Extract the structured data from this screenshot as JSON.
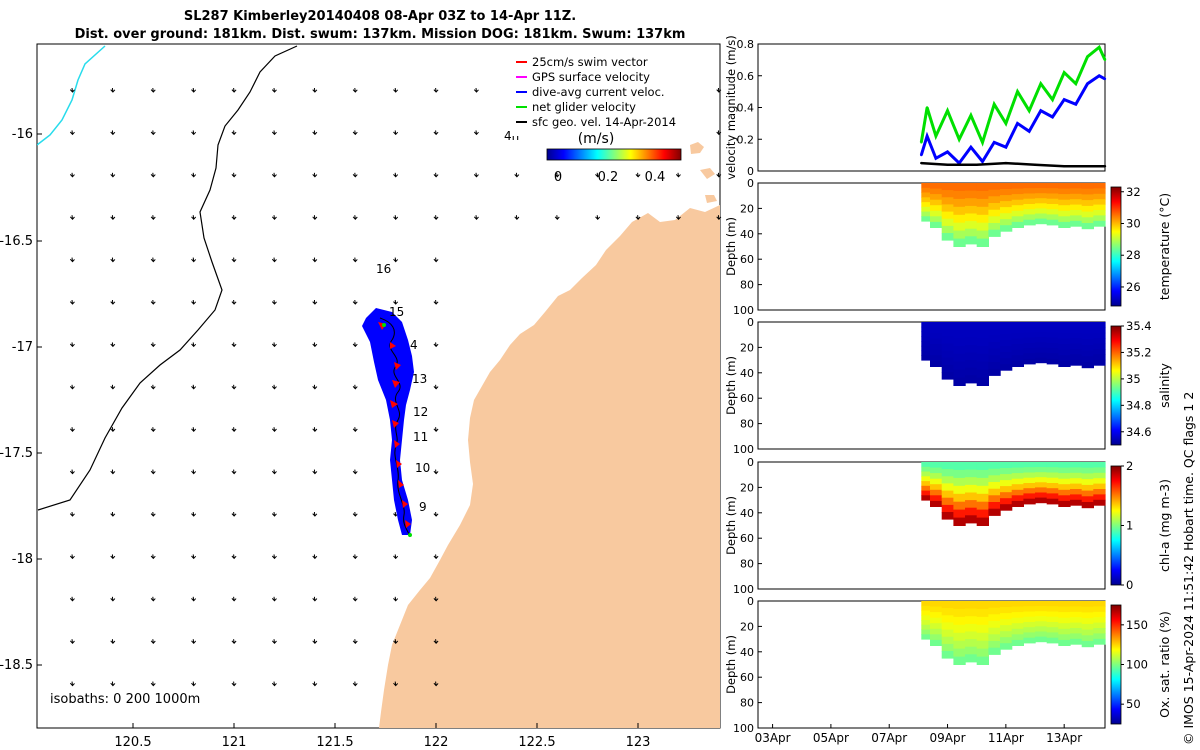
{
  "header": {
    "title_line1": "SL287 Kimberley20140408 08-Apr 03Z to 14-Apr 11Z.",
    "title_line2": "Dist. over ground: 181km. Dist. swum: 137km. Mission DOG: 181km. Swum: 137km"
  },
  "footer_note": "© IMOS 15-Apr-2024 11:51:42 Hobart time. QC flags 1  2",
  "colors": {
    "land": "#f8c99f",
    "track": "#0000ff",
    "swim": "#ff0000",
    "net": "#00e000",
    "geo": "#000000",
    "isobath": "#000000",
    "shallow_isobath": "#28dcec"
  },
  "map": {
    "legend": [
      {
        "label": "25cm/s swim vector",
        "color": "#ff0000"
      },
      {
        "label": "GPS surface velocity",
        "color": "#ff00ff"
      },
      {
        "label": "dive-avg current veloc.",
        "color": "#0000ff"
      },
      {
        "label": "net glider velocity",
        "color": "#00e000"
      },
      {
        "label": "sfc geo. vel. 14-Apr-2014",
        "color": "#000000"
      }
    ],
    "colorbar_label": "(m/s)",
    "colorbar_ticks": [
      "0",
      "0.2",
      "0.4"
    ],
    "isobath_text": "isobaths: 0   200  1000m",
    "x_ticks": [
      "120.5",
      "121",
      "121.5",
      "122",
      "122.5",
      "123"
    ],
    "y_ticks": [
      "-16",
      "-16.5",
      "-17",
      "-17.5",
      "-18",
      "-18.5"
    ],
    "day_labels": [
      "16",
      "15",
      "4",
      "13",
      "12",
      "11",
      "10",
      "9"
    ],
    "stray_label": "4h"
  },
  "chart_data": [
    {
      "type": "line",
      "title": "",
      "ylabel": "velocity magnitude (m/s)",
      "ylim": [
        0,
        0.8
      ],
      "yticks": [
        "0",
        "0.2",
        "0.4",
        "0.6",
        "0.8"
      ],
      "x_day_range": [
        2.5,
        14.4
      ],
      "series": [
        {
          "name": "net glider velocity",
          "color": "#00e000",
          "x": [
            8.1,
            8.3,
            8.6,
            9.0,
            9.4,
            9.8,
            10.2,
            10.6,
            11.0,
            11.4,
            11.8,
            12.2,
            12.6,
            13.0,
            13.4,
            13.8,
            14.2,
            14.4
          ],
          "y": [
            0.18,
            0.4,
            0.22,
            0.38,
            0.2,
            0.35,
            0.18,
            0.42,
            0.3,
            0.5,
            0.38,
            0.55,
            0.45,
            0.62,
            0.55,
            0.72,
            0.78,
            0.7
          ]
        },
        {
          "name": "dive-avg current veloc.",
          "color": "#0000ff",
          "x": [
            8.1,
            8.3,
            8.6,
            9.0,
            9.4,
            9.8,
            10.2,
            10.6,
            11.0,
            11.4,
            11.8,
            12.2,
            12.6,
            13.0,
            13.4,
            13.8,
            14.2,
            14.4
          ],
          "y": [
            0.1,
            0.22,
            0.08,
            0.12,
            0.05,
            0.15,
            0.06,
            0.18,
            0.15,
            0.3,
            0.25,
            0.38,
            0.34,
            0.45,
            0.42,
            0.55,
            0.6,
            0.58
          ]
        },
        {
          "name": "sfc geo. vel.",
          "color": "#000000",
          "x": [
            8.1,
            9.0,
            10.0,
            11.0,
            12.0,
            13.0,
            14.4
          ],
          "y": [
            0.05,
            0.04,
            0.04,
            0.05,
            0.04,
            0.03,
            0.03
          ]
        }
      ]
    },
    {
      "type": "heatmap",
      "ylabel": "Depth (m)",
      "colorbar_label": "temperature (°C)",
      "yticks": [
        "0",
        "20",
        "40",
        "60",
        "80",
        "100"
      ],
      "ylim": [
        100,
        0
      ],
      "color_range": [
        24.8,
        32.3
      ],
      "colorbar_ticks": [
        "26",
        "28",
        "30",
        "32"
      ],
      "colorbar_tick_values": [
        26,
        28,
        30,
        32
      ],
      "x_day_range": [
        2.5,
        14.4
      ],
      "x": [
        8.1,
        8.4,
        8.8,
        9.2,
        9.6,
        10.0,
        10.4,
        10.8,
        11.2,
        11.6,
        12.0,
        12.4,
        12.8,
        13.2,
        13.6,
        14.0,
        14.4
      ],
      "max_depth": [
        30,
        35,
        45,
        50,
        48,
        50,
        42,
        38,
        35,
        33,
        32,
        33,
        35,
        34,
        36,
        34,
        28
      ],
      "surface_value": 30.6,
      "bottom_value": 28.2
    },
    {
      "type": "heatmap",
      "ylabel": "Depth (m)",
      "colorbar_label": "salinity",
      "yticks": [
        "0",
        "20",
        "40",
        "60",
        "80",
        "100"
      ],
      "ylim": [
        100,
        0
      ],
      "color_range": [
        34.5,
        35.4
      ],
      "colorbar_ticks": [
        "34.6",
        "34.8",
        "35",
        "35.2",
        "35.4"
      ],
      "colorbar_tick_values": [
        34.6,
        34.8,
        35.0,
        35.2,
        35.4
      ],
      "x_day_range": [
        2.5,
        14.4
      ],
      "x": [
        8.1,
        8.4,
        8.8,
        9.2,
        9.6,
        10.0,
        10.4,
        10.8,
        11.2,
        11.6,
        12.0,
        12.4,
        12.8,
        13.2,
        13.6,
        14.0,
        14.4
      ],
      "max_depth": [
        30,
        35,
        45,
        50,
        48,
        50,
        42,
        38,
        35,
        33,
        32,
        33,
        35,
        34,
        36,
        34,
        28
      ],
      "surface_value": 34.55,
      "bottom_value": 34.52
    },
    {
      "type": "heatmap",
      "ylabel": "Depth (m)",
      "colorbar_label": "chl-a (mg m-3)",
      "yticks": [
        "0",
        "20",
        "40",
        "60",
        "80",
        "100"
      ],
      "ylim": [
        100,
        0
      ],
      "color_range": [
        0,
        2
      ],
      "colorbar_ticks": [
        "0",
        "1",
        "2"
      ],
      "colorbar_tick_values": [
        0,
        1,
        2
      ],
      "x_day_range": [
        2.5,
        14.4
      ],
      "x": [
        8.1,
        8.4,
        8.8,
        9.2,
        9.6,
        10.0,
        10.4,
        10.8,
        11.2,
        11.6,
        12.0,
        12.4,
        12.8,
        13.2,
        13.6,
        14.0,
        14.4
      ],
      "max_depth": [
        30,
        35,
        45,
        50,
        48,
        50,
        42,
        38,
        35,
        33,
        32,
        33,
        35,
        34,
        36,
        34,
        28
      ],
      "surface_value": 0.9,
      "bottom_value": 2.0
    },
    {
      "type": "heatmap",
      "ylabel": "Depth (m)",
      "colorbar_label": "Ox. sat. ratio (%)",
      "yticks": [
        "0",
        "20",
        "40",
        "60",
        "80",
        "100"
      ],
      "ylim": [
        100,
        0
      ],
      "color_range": [
        25,
        175
      ],
      "colorbar_ticks": [
        "50",
        "100",
        "150"
      ],
      "colorbar_tick_values": [
        50,
        100,
        150
      ],
      "x_day_range": [
        2.5,
        14.4
      ],
      "x": [
        8.1,
        8.4,
        8.8,
        9.2,
        9.6,
        10.0,
        10.4,
        10.8,
        11.2,
        11.6,
        12.0,
        12.4,
        12.8,
        13.2,
        13.6,
        14.0,
        14.4
      ],
      "max_depth": [
        30,
        35,
        45,
        50,
        48,
        50,
        42,
        38,
        35,
        33,
        32,
        33,
        35,
        34,
        36,
        34,
        28
      ],
      "surface_value": 125,
      "bottom_value": 95
    }
  ],
  "time_axis": {
    "labels": [
      "03Apr",
      "05Apr",
      "07Apr",
      "09Apr",
      "11Apr",
      "13Apr"
    ],
    "days": [
      3,
      5,
      7,
      9,
      11,
      13
    ]
  }
}
